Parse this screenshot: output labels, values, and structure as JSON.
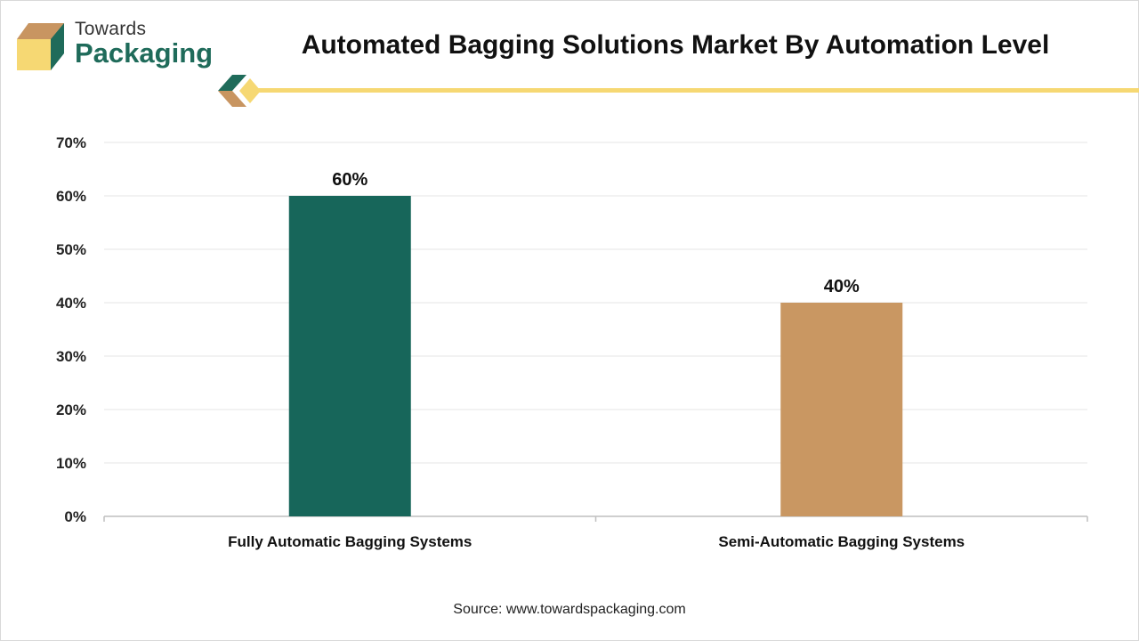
{
  "brand": {
    "name_line1": "Towards",
    "name_line2": "Packaging"
  },
  "colors": {
    "brand_green": "#1f6b5a",
    "brand_tan": "#c89561",
    "brand_yellow": "#f6d873"
  },
  "chart_data": {
    "type": "bar",
    "title": "Automated Bagging Solutions Market By Automation Level",
    "categories": [
      "Fully Automatic Bagging Systems",
      "Semi-Automatic Bagging Systems"
    ],
    "values": [
      60,
      40
    ],
    "value_labels": [
      "60%",
      "40%"
    ],
    "bar_colors": [
      "#17665a",
      "#c99762"
    ],
    "ylim": [
      0,
      70
    ],
    "yticks": [
      0,
      10,
      20,
      30,
      40,
      50,
      60,
      70
    ],
    "ytick_labels": [
      "0%",
      "10%",
      "20%",
      "30%",
      "40%",
      "50%",
      "60%",
      "70%"
    ],
    "xlabel": "",
    "ylabel": "",
    "grid": true,
    "legend": "none"
  },
  "source": "Source: www.towardspackaging.com"
}
